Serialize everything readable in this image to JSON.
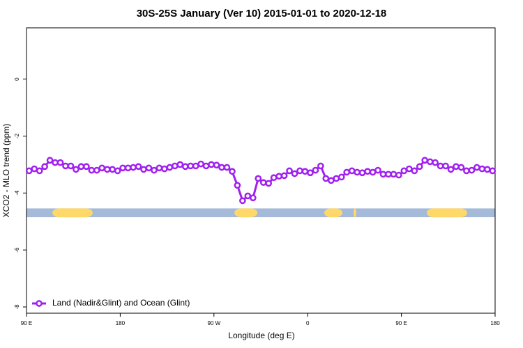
{
  "chart_data": {
    "type": "line",
    "title": "30S-25S January (Ver 10)   2015-01-01 to 2020-12-18",
    "x_label": "Longitude (deg E)",
    "y_label": "XCO2 - MLO trend (ppm)",
    "xlim": [
      90,
      540
    ],
    "ylim": [
      -8.22,
      1.8
    ],
    "xticks": [
      {
        "value": 90,
        "label": "90 E"
      },
      {
        "value": 180,
        "label": "180"
      },
      {
        "value": 270,
        "label": "90 W"
      },
      {
        "value": 360,
        "label": "0"
      },
      {
        "value": 450,
        "label": "90 E"
      },
      {
        "value": 540,
        "label": "180"
      }
    ],
    "yticks": [
      -8,
      -6,
      -4,
      -2,
      0
    ],
    "legend": "bottom-left",
    "x": [
      92.5,
      97.5,
      102.5,
      107.5,
      112.5,
      117.5,
      122.5,
      127.5,
      132.5,
      137.5,
      142.5,
      147.5,
      152.5,
      157.5,
      162.5,
      167.5,
      172.5,
      177.5,
      182.5,
      187.5,
      192.5,
      197.5,
      202.5,
      207.5,
      212.5,
      217.5,
      222.5,
      227.5,
      232.5,
      237.5,
      242.5,
      247.5,
      252.5,
      257.5,
      262.5,
      267.5,
      272.5,
      277.5,
      282.5,
      287.5,
      292.5,
      297.5,
      302.5,
      307.5,
      312.5,
      317.5,
      322.5,
      327.5,
      332.5,
      337.5,
      342.5,
      347.5,
      352.5,
      357.5,
      362.5,
      367.5,
      372.5,
      377.5,
      382.5,
      387.5,
      392.5,
      397.5,
      402.5,
      407.5,
      412.5,
      417.5,
      422.5,
      427.5,
      432.5,
      437.5,
      442.5,
      447.5,
      452.5,
      457.5,
      462.5,
      467.5,
      472.5,
      477.5,
      482.5,
      487.5,
      492.5,
      497.5,
      502.5,
      507.5,
      512.5,
      517.5,
      522.5,
      527.5,
      532.5,
      537.5
    ],
    "series": [
      {
        "name": "Land (Nadir&Glint) and Ocean (Glint)",
        "color": "#a020f0",
        "values": [
          -3.22,
          -3.15,
          -3.22,
          -3.07,
          -2.85,
          -2.93,
          -2.93,
          -3.05,
          -3.05,
          -3.17,
          -3.07,
          -3.07,
          -3.2,
          -3.2,
          -3.12,
          -3.17,
          -3.17,
          -3.22,
          -3.12,
          -3.12,
          -3.1,
          -3.07,
          -3.17,
          -3.12,
          -3.2,
          -3.12,
          -3.15,
          -3.1,
          -3.05,
          -3.0,
          -3.07,
          -3.05,
          -3.05,
          -2.98,
          -3.05,
          -3.0,
          -3.02,
          -3.1,
          -3.1,
          -3.24,
          -3.73,
          -4.27,
          -4.1,
          -4.17,
          -3.49,
          -3.63,
          -3.66,
          -3.46,
          -3.41,
          -3.39,
          -3.22,
          -3.32,
          -3.22,
          -3.24,
          -3.29,
          -3.2,
          -3.05,
          -3.49,
          -3.56,
          -3.49,
          -3.44,
          -3.27,
          -3.22,
          -3.27,
          -3.29,
          -3.24,
          -3.27,
          -3.2,
          -3.34,
          -3.34,
          -3.34,
          -3.37,
          -3.22,
          -3.15,
          -3.22,
          -3.07,
          -2.85,
          -2.9,
          -2.93,
          -3.05,
          -3.05,
          -3.17,
          -3.07,
          -3.1,
          -3.22,
          -3.2,
          -3.1,
          -3.15,
          -3.17,
          -3.22
        ]
      }
    ],
    "surface_band": {
      "ylim": [
        -4.85,
        -4.54
      ],
      "ocean_color": "#a5b9d8",
      "land_color": "#ffd86a",
      "land": [
        [
          114.8,
          153.6
        ],
        [
          289.6,
          311.7
        ],
        [
          375.9,
          393.4
        ],
        [
          404,
          406.7
        ],
        [
          474.4,
          513.2
        ]
      ]
    }
  }
}
